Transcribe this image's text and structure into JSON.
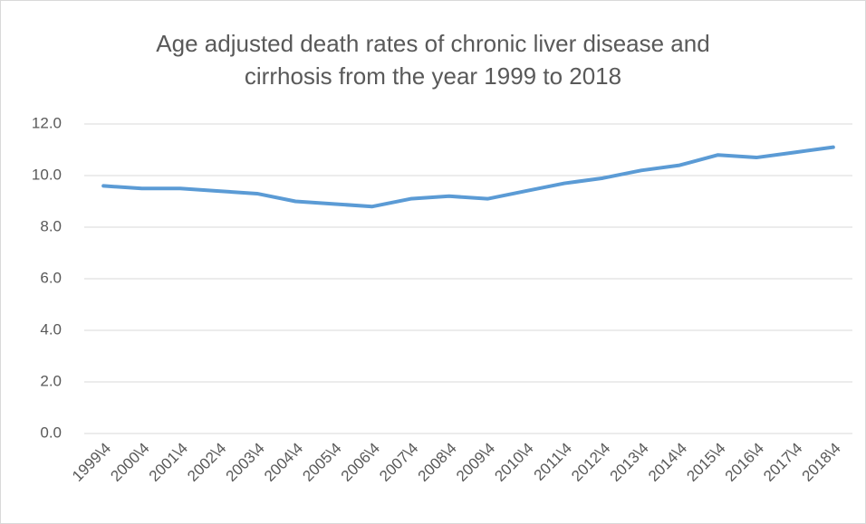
{
  "chart_data": {
    "type": "line",
    "title": "Age adjusted death rates of chronic liver disease and cirrhosis from the year 1999 to 2018",
    "categories": [
      "1999\\4",
      "2000\\4",
      "2001\\4",
      "2002\\4",
      "2003\\4",
      "2004\\4",
      "2005\\4",
      "2006\\4",
      "2007\\4",
      "2008\\4",
      "2009\\4",
      "2010\\4",
      "2011\\4",
      "2012\\4",
      "2013\\4",
      "2014\\4",
      "2015\\4",
      "2016\\4",
      "2017\\4",
      "2018\\4"
    ],
    "values": [
      9.6,
      9.5,
      9.5,
      9.4,
      9.3,
      9.0,
      8.9,
      8.8,
      9.1,
      9.2,
      9.1,
      9.4,
      9.7,
      9.9,
      10.2,
      10.4,
      10.8,
      10.7,
      10.9,
      11.1
    ],
    "color": "#5b9bd5",
    "ylim": [
      0,
      12
    ],
    "yticks": [
      {
        "value": 0,
        "label": "0.0"
      },
      {
        "value": 2,
        "label": "2.0"
      },
      {
        "value": 4,
        "label": "4.0"
      },
      {
        "value": 6,
        "label": "6.0"
      },
      {
        "value": 8,
        "label": "8.0"
      },
      {
        "value": 10,
        "label": "10.0"
      },
      {
        "value": 12,
        "label": "12.0"
      }
    ],
    "grid": true
  }
}
